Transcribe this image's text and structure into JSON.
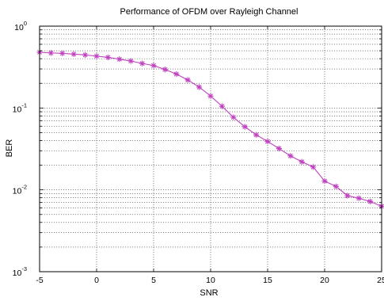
{
  "chart_data": {
    "type": "line",
    "title": "Performance of OFDM over Rayleigh Channel",
    "xlabel": "SNR",
    "ylabel": "BER",
    "xlim": [
      -5,
      25
    ],
    "ylim": [
      0.001,
      1
    ],
    "yscale": "log",
    "grid": true,
    "x_ticks": [
      "-5",
      "0",
      "5",
      "10",
      "15",
      "20",
      "25"
    ],
    "y_ticks": [
      {
        "base": "10",
        "exp": "-3"
      },
      {
        "base": "10",
        "exp": "-2"
      },
      {
        "base": "10",
        "exp": "-1"
      },
      {
        "base": "10",
        "exp": "0"
      }
    ],
    "series": [
      {
        "color": "#c040c0",
        "marker": "asterisk",
        "x": [
          -5,
          -4,
          -3,
          -2,
          -1,
          0,
          1,
          2,
          3,
          4,
          5,
          6,
          7,
          8,
          9,
          10,
          11,
          12,
          13,
          14,
          15,
          16,
          17,
          18,
          19,
          20,
          21,
          22,
          23,
          24,
          25
        ],
        "y": [
          0.48,
          0.47,
          0.465,
          0.455,
          0.445,
          0.43,
          0.415,
          0.395,
          0.375,
          0.35,
          0.33,
          0.295,
          0.26,
          0.22,
          0.18,
          0.14,
          0.105,
          0.077,
          0.059,
          0.047,
          0.039,
          0.032,
          0.026,
          0.022,
          0.019,
          0.0128,
          0.011,
          0.0085,
          0.0079,
          0.0072,
          0.0063
        ]
      }
    ]
  }
}
